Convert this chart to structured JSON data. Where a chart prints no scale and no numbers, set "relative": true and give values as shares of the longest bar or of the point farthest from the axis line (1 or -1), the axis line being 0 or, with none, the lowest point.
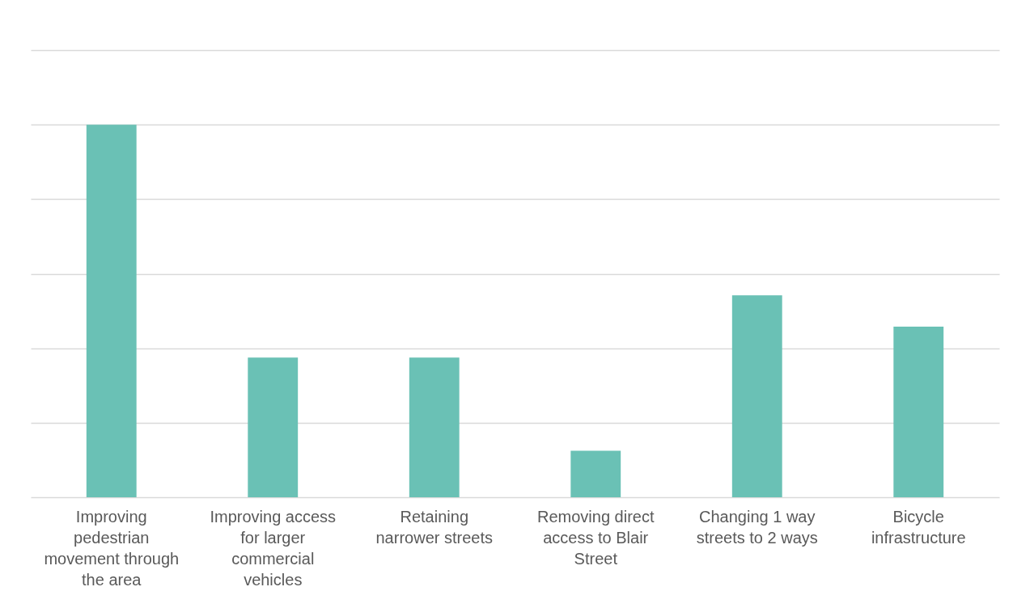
{
  "chart_data": {
    "type": "bar",
    "relative": true,
    "categories": [
      "Improving pedestrian movement through the area",
      "Improving access for larger commercial vehicles",
      "Retaining narrower streets",
      "Removing direct access to Blair Street",
      "Changing 1 way streets to 2 ways",
      "Bicycle infrastructure"
    ],
    "values": [
      1,
      0.375,
      0.375,
      0.125,
      0.542,
      0.458
    ],
    "color": "#6ac1b5",
    "grid": "y"
  }
}
